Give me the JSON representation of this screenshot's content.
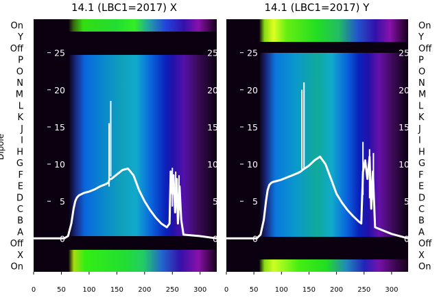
{
  "figure": {
    "ylabel_left": "Dipole",
    "row_labels": [
      "On",
      "Y",
      "Off",
      "P",
      "O",
      "N",
      "M",
      "L",
      "K",
      "J",
      "I",
      "H",
      "G",
      "F",
      "E",
      "D",
      "C",
      "B",
      "A",
      "Off",
      "X",
      "On"
    ]
  },
  "chart_data": [
    {
      "type": "heatmap",
      "title": "14.1 (LBC1=2017) X",
      "xlim": [
        0,
        330
      ],
      "x_ticks": [
        0,
        50,
        100,
        150,
        200,
        250,
        300
      ],
      "inner_ylim": [
        -4.5,
        29.5
      ],
      "inner_y_ticks": [
        0,
        5,
        10,
        15,
        20,
        25
      ],
      "row_labels": [
        "On",
        "Y",
        "Off",
        "P",
        "O",
        "N",
        "M",
        "L",
        "K",
        "J",
        "I",
        "H",
        "G",
        "F",
        "E",
        "D",
        "C",
        "B",
        "A",
        "Off",
        "X",
        "On"
      ],
      "overlay_line": {
        "color": "#ffffff",
        "x": [
          0,
          55,
          62,
          68,
          72,
          75,
          78,
          82,
          85,
          90,
          100,
          110,
          120,
          130,
          135,
          137,
          140,
          150,
          160,
          170,
          180,
          190,
          200,
          210,
          220,
          230,
          240,
          245,
          247,
          250,
          252,
          255,
          258,
          260,
          263,
          266,
          270,
          300,
          330
        ],
        "y": [
          0,
          0,
          0.3,
          2.0,
          4.0,
          5.0,
          5.5,
          5.8,
          5.9,
          6.1,
          6.3,
          6.6,
          7.0,
          7.3,
          7.5,
          8.0,
          8.0,
          8.6,
          9.2,
          9.4,
          8.5,
          6.5,
          5.0,
          3.8,
          2.8,
          2.0,
          1.5,
          2.0,
          9.0,
          6.0,
          8.5,
          3.5,
          8.0,
          2.0,
          7.0,
          2.5,
          0.5,
          0.3,
          0
        ]
      },
      "spikes": [
        {
          "x": 136,
          "peak": 15.5
        },
        {
          "x": 139,
          "peak": 18.5
        },
        {
          "x": 250,
          "peak": 9.5
        },
        {
          "x": 256,
          "peak": 9.0
        },
        {
          "x": 262,
          "peak": 8.5
        }
      ]
    },
    {
      "type": "heatmap",
      "title": "14.1 (LBC1=2017) Y",
      "xlim": [
        0,
        330
      ],
      "x_ticks": [
        0,
        50,
        100,
        150,
        200,
        250,
        300
      ],
      "inner_ylim": [
        -4.5,
        29.5
      ],
      "inner_y_ticks": [
        0,
        5,
        10,
        15,
        20,
        25
      ],
      "row_labels": [
        "On",
        "Y",
        "Off",
        "P",
        "O",
        "N",
        "M",
        "L",
        "K",
        "J",
        "I",
        "H",
        "G",
        "F",
        "E",
        "D",
        "C",
        "B",
        "A",
        "Off",
        "X",
        "On"
      ],
      "overlay_line": {
        "color": "#ffffff",
        "x": [
          0,
          55,
          62,
          68,
          72,
          75,
          78,
          82,
          85,
          90,
          100,
          110,
          120,
          130,
          135,
          140,
          150,
          160,
          170,
          180,
          190,
          200,
          210,
          220,
          230,
          240,
          245,
          248,
          252,
          256,
          260,
          263,
          266,
          270,
          300,
          330
        ],
        "y": [
          0,
          0,
          0.5,
          2.5,
          5.0,
          6.5,
          7.2,
          7.5,
          7.6,
          7.7,
          7.9,
          8.2,
          8.5,
          8.8,
          9.0,
          9.3,
          9.8,
          10.5,
          11.0,
          10.0,
          8.0,
          6.0,
          4.8,
          3.8,
          3.0,
          2.3,
          2.0,
          9.0,
          10.5,
          8.0,
          11.0,
          4.0,
          9.0,
          1.5,
          0.6,
          0
        ]
      },
      "spikes": [
        {
          "x": 137,
          "peak": 20.0
        },
        {
          "x": 141,
          "peak": 21.0
        },
        {
          "x": 248,
          "peak": 13.0
        },
        {
          "x": 260,
          "peak": 12.0
        },
        {
          "x": 267,
          "peak": 11.5
        }
      ]
    }
  ]
}
